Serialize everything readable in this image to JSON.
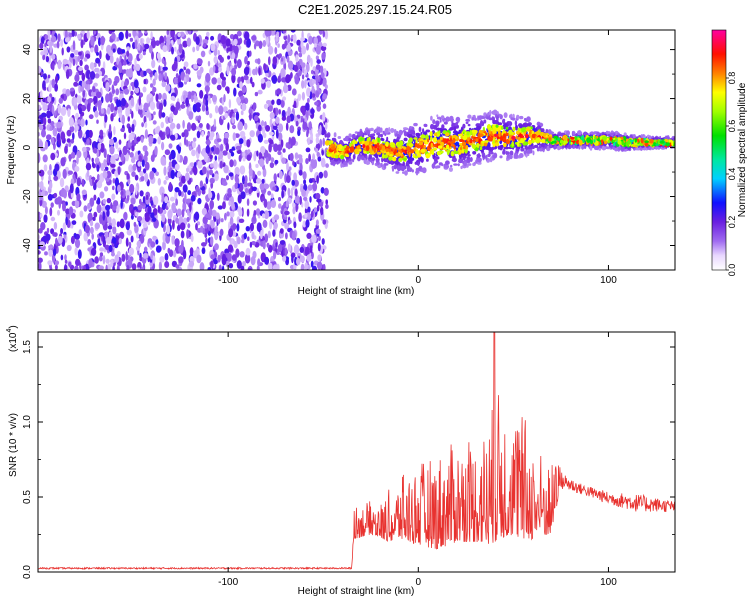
{
  "title": "C2E1.2025.297.15.24.R05",
  "colors": {
    "snr_line": "#e8322f",
    "axis": "#000000",
    "background": "#ffffff"
  },
  "chart_data": [
    {
      "type": "heatmap",
      "name": "spectrogram",
      "xlabel": "Height of straight line (km)",
      "ylabel": "Frequency (Hz)",
      "xlim": [
        -200,
        135
      ],
      "ylim": [
        -50,
        48
      ],
      "xticks": [
        -100,
        0,
        100
      ],
      "xtick_labels": [
        "-100",
        "0",
        "100"
      ],
      "yticks": [
        -40,
        -20,
        0,
        20,
        40
      ],
      "ytick_labels": [
        "-40",
        "-20",
        "0",
        "20",
        "40"
      ],
      "colorbar": {
        "label": "Normalized spectral amplitude",
        "range": [
          0,
          1
        ],
        "ticks": [
          0.0,
          0.2,
          0.4,
          0.6,
          0.8
        ],
        "tick_labels": [
          "0.0",
          "0.2",
          "0.4",
          "0.6",
          "0.8"
        ]
      },
      "regions": [
        {
          "x_range": [
            -200,
            -48
          ],
          "description": "broadband noise",
          "amplitude": 0.15
        },
        {
          "x_range": [
            -48,
            135
          ],
          "description": "narrow signal near 0 Hz",
          "amplitude": 0.55
        }
      ],
      "signal_track": {
        "x": [
          -48,
          -40,
          -30,
          -20,
          -10,
          0,
          10,
          20,
          30,
          40,
          50,
          60,
          70,
          80,
          90,
          100,
          110,
          120,
          135
        ],
        "y": [
          0,
          -2,
          1,
          0,
          -2,
          0,
          2,
          2,
          3,
          5,
          4,
          5,
          3,
          3,
          3,
          3,
          2,
          2,
          2
        ],
        "width_hz": [
          7,
          5,
          6,
          7,
          8,
          10,
          10,
          10,
          9,
          9,
          8,
          7,
          3,
          3,
          3,
          3,
          3,
          2,
          2
        ]
      }
    },
    {
      "type": "line",
      "name": "snr",
      "xlabel": "Height of straight line (km)",
      "ylabel": "SNR (10 * v/v)",
      "scale_label": "(x10",
      "scale_exp": "4",
      "xlim": [
        -200,
        135
      ],
      "ylim": [
        0,
        1.6
      ],
      "xticks": [
        -100,
        0,
        100
      ],
      "xtick_labels": [
        "-100",
        "0",
        "100"
      ],
      "yticks": [
        0,
        0.5,
        1.0,
        1.5
      ],
      "ytick_labels": [
        "0.0",
        "0.5",
        "1.0",
        "1.5"
      ],
      "envelope": {
        "x": [
          -200,
          -60,
          -35,
          -34,
          -25,
          -15,
          -10,
          0,
          10,
          20,
          30,
          38,
          40,
          50,
          55,
          60,
          70,
          75,
          85,
          100,
          115,
          135
        ],
        "base": [
          0.02,
          0.02,
          0.02,
          0.22,
          0.25,
          0.2,
          0.22,
          0.18,
          0.15,
          0.2,
          0.2,
          0.18,
          0.2,
          0.25,
          0.2,
          0.22,
          0.25,
          0.55,
          0.52,
          0.45,
          0.4,
          0.4
        ],
        "peak": [
          0.03,
          0.03,
          0.03,
          0.5,
          0.55,
          0.55,
          0.75,
          0.9,
          1.0,
          1.1,
          1.1,
          1.3,
          1.6,
          1.3,
          1.38,
          1.1,
          0.9,
          0.65,
          0.58,
          0.52,
          0.5,
          0.46
        ]
      },
      "max_value": 1.6,
      "max_at_x": 40
    }
  ]
}
